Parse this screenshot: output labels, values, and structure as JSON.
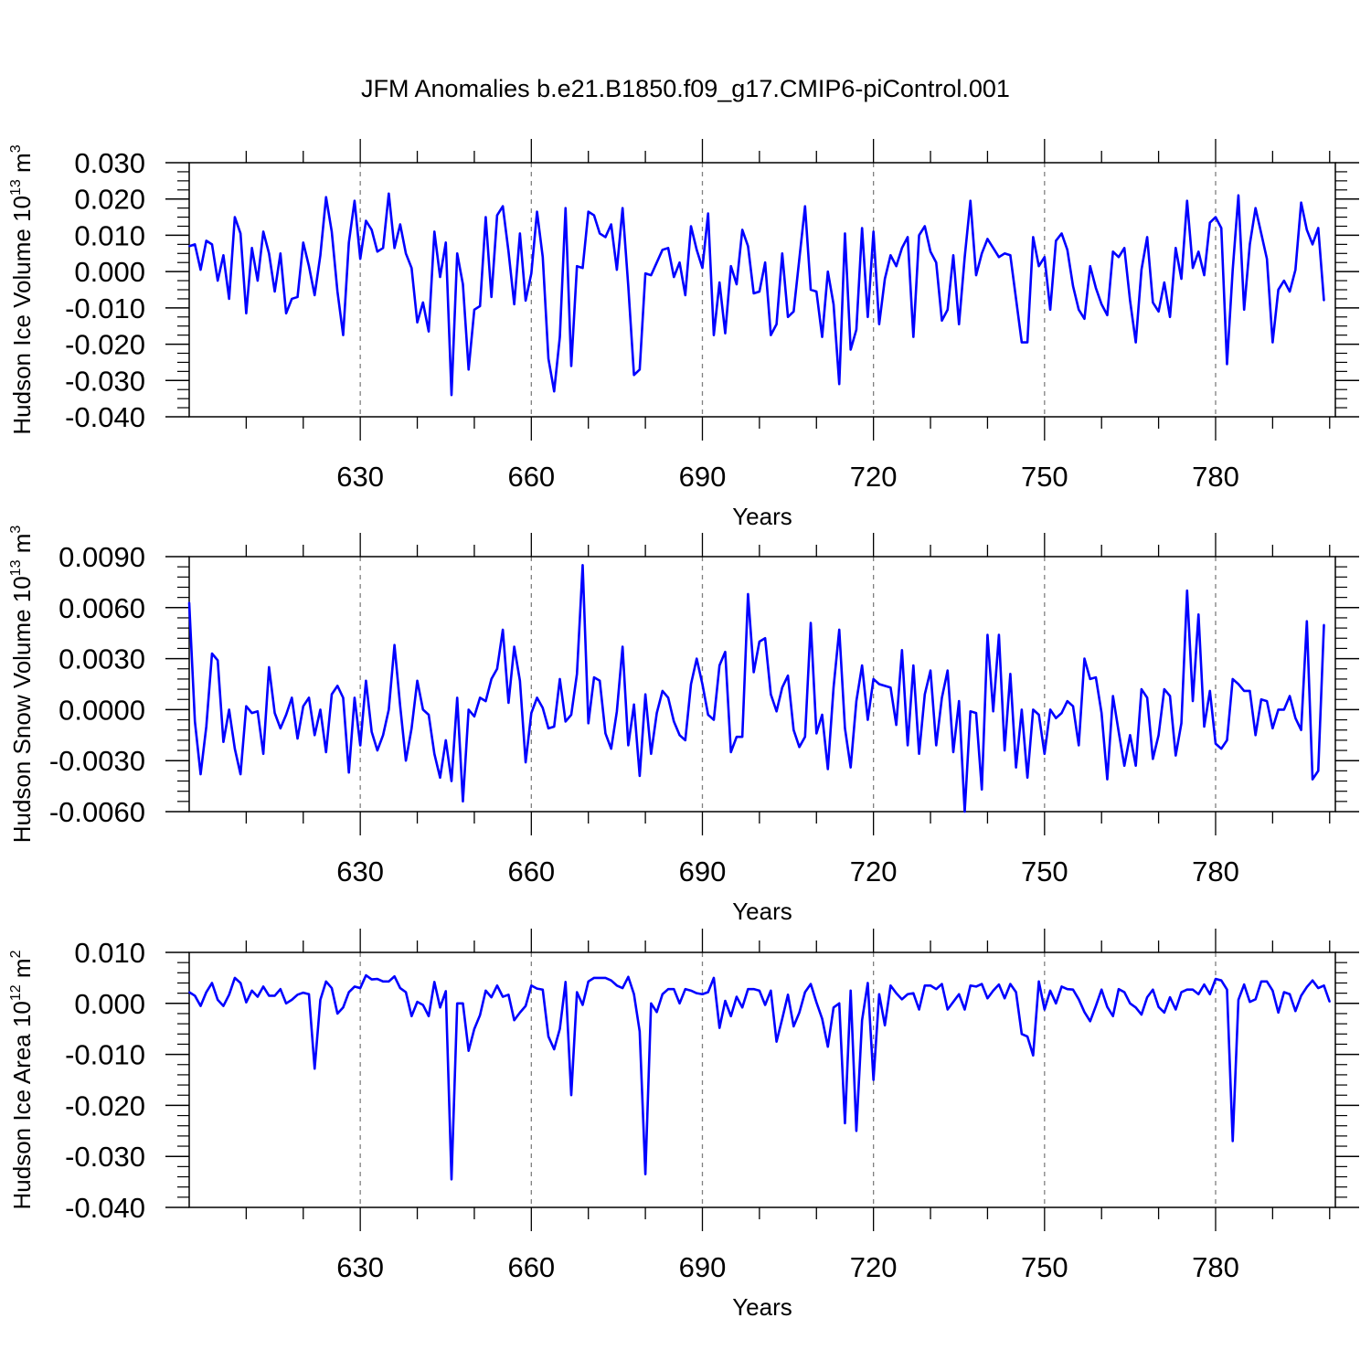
{
  "figure_title": "JFM Anomalies b.e21.B1850.f09_g17.CMIP6-piControl.001",
  "colors": {
    "line": "#0000ff",
    "axis": "#000000",
    "grid": "#808080",
    "background": "#ffffff"
  },
  "chart_data": [
    {
      "type": "line",
      "title": "JFM Anomalies b.e21.B1850.f09_g17.CMIP6-piControl.001",
      "xlabel": "Years",
      "ylabel": {
        "text": "Hudson Ice Volume 10",
        "exponent": "13",
        "unit": " m",
        "unit_exponent": "3"
      },
      "xlim": [
        600,
        801
      ],
      "ylim": [
        -0.04,
        0.03
      ],
      "x_ticks": [
        630,
        660,
        690,
        720,
        750,
        780
      ],
      "x_tick_labels": [
        "630",
        "660",
        "690",
        "720",
        "750",
        "780"
      ],
      "y_ticks": [
        -0.04,
        -0.03,
        -0.02,
        -0.01,
        0.0,
        0.01,
        0.02,
        0.03
      ],
      "y_tick_labels": [
        "-0.040",
        "-0.030",
        "-0.020",
        "-0.010",
        "0.000",
        "0.010",
        "0.020",
        "0.030"
      ],
      "vertical_gridlines": "dashed at x ticks",
      "series": [
        {
          "name": "Hudson Ice Volume",
          "x_start": 600,
          "x_step": 1,
          "values": [
            0.007,
            0.0075,
            0.0005,
            0.0085,
            0.0075,
            -0.0025,
            0.0045,
            -0.0075,
            0.015,
            0.0105,
            -0.0115,
            0.0065,
            -0.0025,
            0.011,
            0.005,
            -0.0055,
            0.005,
            -0.0115,
            -0.0075,
            -0.007,
            0.008,
            0.0015,
            -0.0065,
            0.0045,
            0.0205,
            0.011,
            -0.0055,
            -0.0175,
            0.008,
            0.0195,
            0.0035,
            0.014,
            0.0115,
            0.0055,
            0.0065,
            0.0215,
            0.0065,
            0.013,
            0.005,
            0.001,
            -0.014,
            -0.0085,
            -0.0165,
            0.011,
            -0.0015,
            0.008,
            -0.034,
            0.005,
            -0.0035,
            -0.027,
            -0.0105,
            -0.0095,
            0.015,
            -0.007,
            0.0155,
            0.018,
            0.0055,
            -0.009,
            0.0105,
            -0.008,
            -0.0005,
            0.0165,
            0.004,
            -0.024,
            -0.033,
            -0.018,
            0.0175,
            -0.026,
            0.0015,
            0.001,
            0.0165,
            0.0155,
            0.0105,
            0.0095,
            0.013,
            0.0005,
            0.0175,
            -0.004,
            -0.0285,
            -0.027,
            -0.0005,
            -0.001,
            0.0025,
            0.006,
            0.0065,
            -0.0015,
            0.0025,
            -0.0065,
            0.0125,
            0.006,
            0.001,
            0.016,
            -0.0175,
            -0.003,
            -0.017,
            0.0015,
            -0.0035,
            0.0115,
            0.007,
            -0.006,
            -0.0055,
            0.0025,
            -0.0175,
            -0.0145,
            0.005,
            -0.0125,
            -0.011,
            0.0035,
            0.018,
            -0.005,
            -0.0055,
            -0.018,
            0.0,
            -0.009,
            -0.031,
            0.0105,
            -0.0215,
            -0.016,
            0.012,
            -0.0125,
            0.011,
            -0.0145,
            -0.002,
            0.0045,
            0.0015,
            0.0065,
            0.0095,
            -0.018,
            0.01,
            0.0125,
            0.0055,
            0.0025,
            -0.0135,
            -0.0105,
            0.0045,
            -0.0145,
            0.004,
            0.0195,
            -0.001,
            0.005,
            0.009,
            0.0065,
            0.004,
            0.005,
            0.0045,
            -0.0075,
            -0.0195,
            -0.0195,
            0.0095,
            0.0015,
            0.004,
            -0.0105,
            0.0085,
            0.0105,
            0.006,
            -0.004,
            -0.0105,
            -0.013,
            0.0015,
            -0.0045,
            -0.009,
            -0.012,
            0.0055,
            0.004,
            0.0065,
            -0.008,
            -0.0195,
            0.0005,
            0.0095,
            -0.0085,
            -0.011,
            -0.003,
            -0.0125,
            0.0065,
            -0.002,
            0.0195,
            0.001,
            0.0055,
            -0.001,
            0.0135,
            0.015,
            0.012,
            -0.0255,
            0.0005,
            0.021,
            -0.0105,
            0.0075,
            0.0175,
            0.0105,
            0.0035,
            -0.0195,
            -0.005,
            -0.0025,
            -0.0055,
            0.0005,
            0.019,
            0.0115,
            0.0075,
            0.012,
            -0.008
          ]
        }
      ]
    },
    {
      "type": "line",
      "xlabel": "Years",
      "ylabel": {
        "text": "Hudson Snow Volume 10",
        "exponent": "13",
        "unit": " m",
        "unit_exponent": "3"
      },
      "xlim": [
        600,
        801
      ],
      "ylim": [
        -0.006,
        0.009
      ],
      "x_ticks": [
        630,
        660,
        690,
        720,
        750,
        780
      ],
      "x_tick_labels": [
        "630",
        "660",
        "690",
        "720",
        "750",
        "780"
      ],
      "y_ticks": [
        -0.006,
        -0.003,
        0.0,
        0.003,
        0.006,
        0.009
      ],
      "y_tick_labels": [
        "-0.0060",
        "-0.0030",
        "0.0000",
        "0.0030",
        "0.0060",
        "0.0090"
      ],
      "vertical_gridlines": "dashed at x ticks",
      "series": [
        {
          "name": "Hudson Snow Volume",
          "x_start": 600,
          "x_step": 1,
          "values": [
            0.0063,
            -0.0007,
            -0.0038,
            -0.001,
            0.0033,
            0.0029,
            -0.0019,
            0.0,
            -0.0023,
            -0.0038,
            0.0002,
            -0.0002,
            -0.0001,
            -0.0026,
            0.0025,
            -0.0002,
            -0.0011,
            -0.0003,
            0.0007,
            -0.0017,
            0.0002,
            0.0007,
            -0.0015,
            0.0,
            -0.0025,
            0.0009,
            0.0014,
            0.0007,
            -0.0037,
            0.0007,
            -0.0021,
            0.0017,
            -0.0013,
            -0.0024,
            -0.0015,
            0.0,
            0.0038,
            0.0002,
            -0.003,
            -0.0011,
            0.0017,
            0.0,
            -0.0003,
            -0.0026,
            -0.004,
            -0.0018,
            -0.0042,
            0.0007,
            -0.0054,
            0.0,
            -0.0004,
            0.0007,
            0.0005,
            0.0018,
            0.0024,
            0.0047,
            0.0004,
            0.0037,
            0.0017,
            -0.0031,
            -0.0002,
            0.0007,
            0.0001,
            -0.0011,
            -0.001,
            0.0018,
            -0.0007,
            -0.0003,
            0.0021,
            0.0085,
            -0.0008,
            0.0019,
            0.0017,
            -0.0014,
            -0.0023,
            -0.0001,
            0.0037,
            -0.0021,
            0.0003,
            -0.0039,
            0.0009,
            -0.0026,
            -0.0002,
            0.0011,
            0.0007,
            -0.0007,
            -0.0015,
            -0.0018,
            0.0015,
            0.003,
            0.0015,
            -0.0003,
            -0.0006,
            0.0026,
            0.0034,
            -0.0025,
            -0.0016,
            -0.0016,
            0.0068,
            0.0022,
            0.004,
            0.0042,
            0.0009,
            -0.0001,
            0.0013,
            0.002,
            -0.0012,
            -0.0022,
            -0.0016,
            0.0051,
            -0.0014,
            -0.0003,
            -0.0035,
            0.0013,
            0.0047,
            -0.0011,
            -0.0034,
            0.0005,
            0.0026,
            -0.0006,
            0.0018,
            0.0015,
            0.0014,
            0.0013,
            -0.0009,
            0.0035,
            -0.0021,
            0.0026,
            -0.0026,
            0.0009,
            0.0023,
            -0.0021,
            0.0007,
            0.0023,
            -0.0025,
            0.0005,
            -0.006,
            -0.0001,
            -0.0002,
            -0.0047,
            0.0044,
            -0.0001,
            0.0044,
            -0.0024,
            0.0021,
            -0.0034,
            0.0,
            -0.004,
            0.0,
            -0.0003,
            -0.0026,
            0.0,
            -0.0005,
            -0.0002,
            0.0005,
            0.0002,
            -0.0021,
            0.003,
            0.0018,
            0.0019,
            -0.0002,
            -0.0041,
            0.0008,
            -0.0013,
            -0.0033,
            -0.0015,
            -0.0033,
            0.0012,
            0.0007,
            -0.0029,
            -0.0015,
            0.0012,
            0.0008,
            -0.0027,
            -0.0008,
            0.007,
            0.0005,
            0.0056,
            -0.001,
            0.0011,
            -0.002,
            -0.0023,
            -0.0018,
            0.0018,
            0.0015,
            0.0011,
            0.0011,
            -0.0015,
            0.0006,
            0.0005,
            -0.0011,
            0.0,
            0.0,
            0.0008,
            -0.0005,
            -0.0012,
            0.0052,
            -0.0041,
            -0.0036,
            0.005
          ]
        }
      ]
    },
    {
      "type": "line",
      "xlabel": "Years",
      "ylabel": {
        "text": "Hudson Ice Area 10",
        "exponent": "12",
        "unit": " m",
        "unit_exponent": "2"
      },
      "xlim": [
        600,
        801
      ],
      "ylim": [
        -0.04,
        0.01
      ],
      "x_ticks": [
        630,
        660,
        690,
        720,
        750,
        780
      ],
      "x_tick_labels": [
        "630",
        "660",
        "690",
        "720",
        "750",
        "780"
      ],
      "y_ticks": [
        -0.04,
        -0.03,
        -0.02,
        -0.01,
        0.0,
        0.01
      ],
      "y_tick_labels": [
        "-0.040",
        "-0.030",
        "-0.020",
        "-0.010",
        "0.000",
        "0.010"
      ],
      "vertical_gridlines": "dashed at x ticks",
      "series": [
        {
          "name": "Hudson Ice Area",
          "x_start": 600,
          "x_step": 1,
          "values": [
            0.0022,
            0.0015,
            -0.0005,
            0.0022,
            0.004,
            0.0007,
            -0.0005,
            0.0017,
            0.005,
            0.004,
            0.0002,
            0.0025,
            0.0013,
            0.0033,
            0.0015,
            0.0015,
            0.0028,
            0.0,
            0.0007,
            0.0017,
            0.0021,
            0.0018,
            -0.0128,
            0.0007,
            0.0043,
            0.003,
            -0.002,
            -0.0008,
            0.0022,
            0.0033,
            0.003,
            0.0055,
            0.0047,
            0.0048,
            0.0043,
            0.0043,
            0.0053,
            0.003,
            0.0022,
            -0.0025,
            0.0003,
            -0.0003,
            -0.0025,
            0.0042,
            -0.0008,
            0.0024,
            -0.0345,
            0.0,
            0.0,
            -0.0093,
            -0.005,
            -0.0023,
            0.0025,
            0.0012,
            0.0035,
            0.0013,
            0.0017,
            -0.0033,
            -0.0018,
            -0.0005,
            0.0035,
            0.0029,
            0.0027,
            -0.0065,
            -0.009,
            -0.005,
            0.0042,
            -0.018,
            0.0022,
            -0.0003,
            0.0043,
            0.005,
            0.005,
            0.005,
            0.0045,
            0.0035,
            0.003,
            0.0052,
            0.0018,
            -0.0055,
            -0.0335,
            0.0,
            -0.0017,
            0.0018,
            0.0028,
            0.0028,
            0.0,
            0.0028,
            0.0025,
            0.002,
            0.0018,
            0.0022,
            0.005,
            -0.0048,
            0.0005,
            -0.0025,
            0.0013,
            -0.0008,
            0.0028,
            0.0028,
            0.0025,
            -0.0003,
            0.0025,
            -0.0075,
            -0.003,
            0.0017,
            -0.0045,
            -0.0018,
            0.0022,
            0.0038,
            0.0002,
            -0.003,
            -0.0085,
            -0.0008,
            0.0,
            -0.0235,
            0.0025,
            -0.025,
            -0.0033,
            0.004,
            -0.015,
            0.0018,
            -0.0043,
            0.0035,
            0.002,
            0.0008,
            0.0018,
            0.002,
            -0.0012,
            0.0035,
            0.0035,
            0.0028,
            0.0038,
            -0.0012,
            0.0003,
            0.0018,
            -0.0012,
            0.0035,
            0.0033,
            0.0038,
            0.001,
            0.0025,
            0.0037,
            0.001,
            0.0038,
            0.0022,
            -0.006,
            -0.0065,
            -0.0102,
            0.0043,
            -0.0012,
            0.0025,
            0.0,
            0.0033,
            0.0028,
            0.0027,
            0.0008,
            -0.0017,
            -0.0035,
            -0.0005,
            0.0027,
            -0.0007,
            -0.0025,
            0.0028,
            0.0022,
            0.0,
            -0.0008,
            -0.0022,
            0.0012,
            0.0027,
            -0.0007,
            -0.0018,
            0.0012,
            -0.0012,
            0.0022,
            0.0027,
            0.0027,
            0.0018,
            0.0037,
            0.0018,
            0.0048,
            0.0045,
            0.0027,
            -0.027,
            0.0007,
            0.0037,
            0.0003,
            0.0008,
            0.0043,
            0.0043,
            0.0025,
            -0.0018,
            0.0022,
            0.0018,
            -0.0015,
            0.0015,
            0.0032,
            0.0045,
            0.003,
            0.0035,
            0.0003
          ]
        }
      ]
    }
  ]
}
